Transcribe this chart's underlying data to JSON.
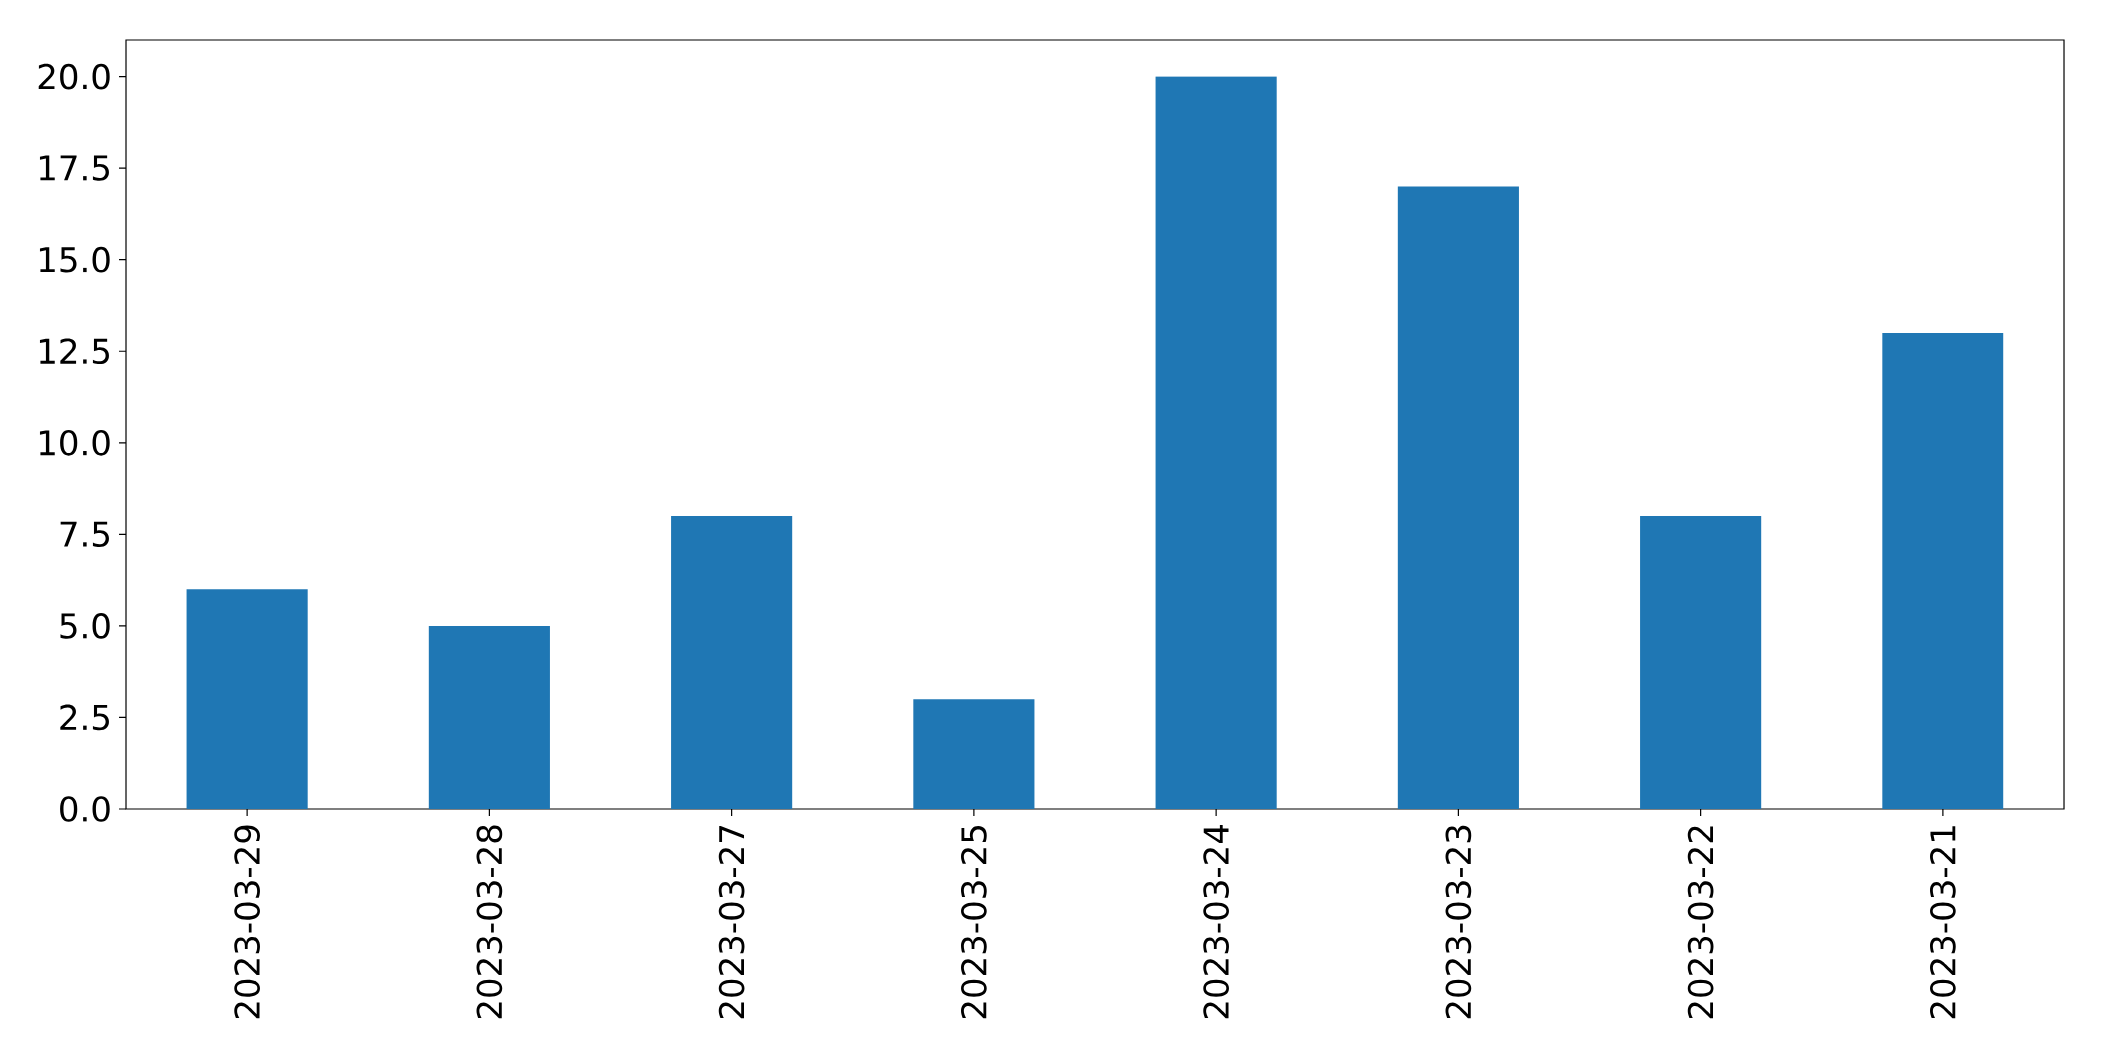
{
  "chart_data": {
    "type": "bar",
    "categories": [
      "2023-03-29",
      "2023-03-28",
      "2023-03-27",
      "2023-03-25",
      "2023-03-24",
      "2023-03-23",
      "2023-03-22",
      "2023-03-21"
    ],
    "values": [
      6,
      5,
      8,
      3,
      20,
      17,
      8,
      13
    ],
    "color": "#1f77b4",
    "ylim": [
      0,
      21
    ],
    "yticks": [
      {
        "value": 0,
        "label": "0.0"
      },
      2.5,
      {
        "value": 5,
        "label": "5.0"
      },
      7.5,
      {
        "value": 10,
        "label": "10.0"
      },
      12.5,
      {
        "value": 15,
        "label": "15.0"
      },
      17.5,
      {
        "value": 20,
        "label": "20.0"
      }
    ]
  }
}
